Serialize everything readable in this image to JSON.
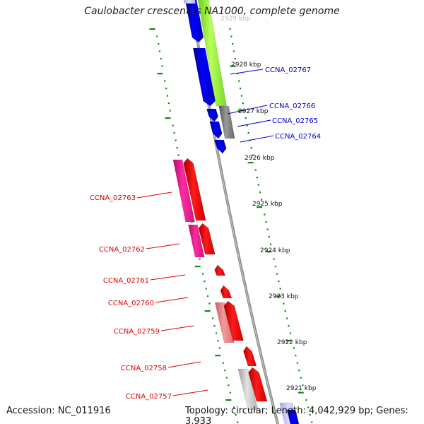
{
  "title": "Caulobacter crescentus NA1000, complete genome",
  "accession_label": "Accession: NC_011916",
  "summary_label": "Topology: circular; Length: 4,042,929 bp; Genes: 3,933",
  "top_cut_label": "2929 kbp",
  "colors": {
    "backbone": "#8c8c8c",
    "forward_gene": "#0000ff",
    "reverse_gene": "#ff0000",
    "cds_rna_pink": "#ff1493",
    "cds_light_pink": "#f08080",
    "gene_grey": "#909090",
    "gene_light_grey": "#c8c8c8",
    "cds_lime": "#99ff33",
    "tick": "#118811",
    "forward_label": "#0000cc",
    "reverse_label": "#dd0000"
  },
  "ticks": [
    "2928 kbp",
    "2927 kbp",
    "2926 kbp",
    "2925 kbp",
    "2924 kbp",
    "2923 kbp",
    "2922 kbp",
    "2921 kbp"
  ],
  "forward_labels": [
    "CCNA_02767",
    "CCNA_02766",
    "CCNA_02765",
    "CCNA_02764"
  ],
  "reverse_labels": [
    "CCNA_02763",
    "CCNA_02762",
    "CCNA_02761",
    "CCNA_02760",
    "CCNA_02759",
    "CCNA_02758",
    "CCNA_02757"
  ]
}
